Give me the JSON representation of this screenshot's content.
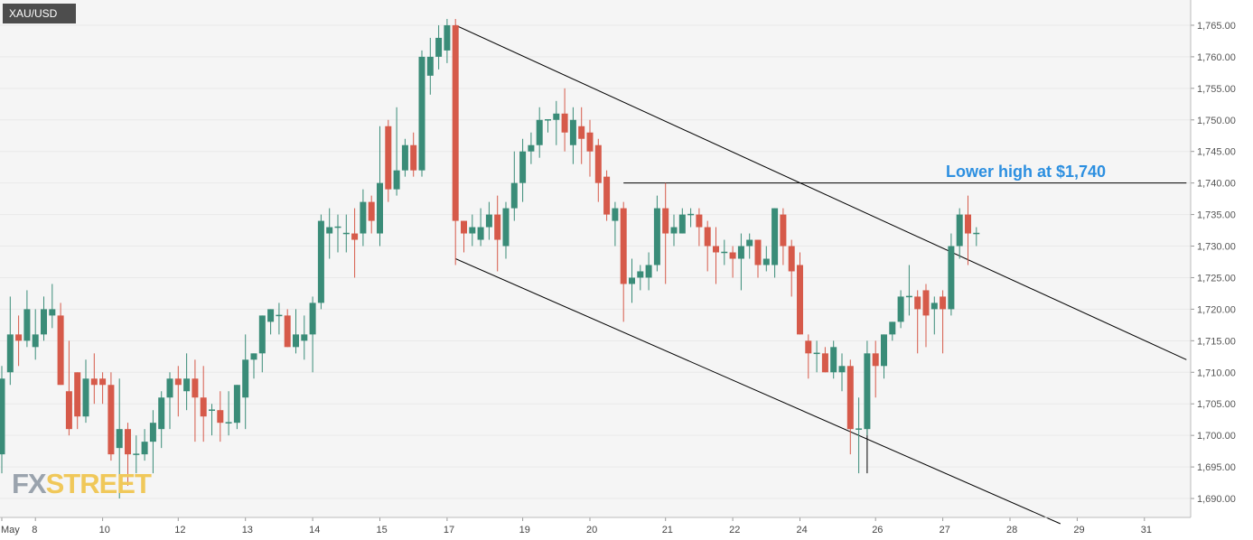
{
  "header": {
    "symbol": "XAU/USD"
  },
  "logo": {
    "part1": "FX",
    "part2": "STREET"
  },
  "colors": {
    "up": "#3a8c78",
    "down": "#d65a4a",
    "grid": "#e9e9e9",
    "background": "#f5f5f5",
    "annotation": "#2c8fe0",
    "trendline": "#000000"
  },
  "chart_data": {
    "type": "candlestick",
    "title": "XAU/USD",
    "xlabel": "",
    "ylabel": "",
    "ylim": [
      1687,
      1769
    ],
    "y_ticks": [
      1690,
      1695,
      1700,
      1705,
      1710,
      1715,
      1720,
      1725,
      1730,
      1735,
      1740,
      1745,
      1750,
      1755,
      1760,
      1765
    ],
    "x_ticks": [
      "May",
      "8",
      "10",
      "12",
      "13",
      "14",
      "15",
      "17",
      "19",
      "20",
      "21",
      "22",
      "24",
      "26",
      "27",
      "28",
      "29",
      "31"
    ],
    "grid": true,
    "candles": [
      [
        1697,
        1709,
        1694,
        1711
      ],
      [
        1710,
        1716,
        1708,
        1722
      ],
      [
        1716,
        1715,
        1711,
        1719
      ],
      [
        1715,
        1720,
        1714,
        1723
      ],
      [
        1714,
        1716,
        1712,
        1720
      ],
      [
        1716,
        1720,
        1715,
        1722
      ],
      [
        1719,
        1720,
        1717,
        1724
      ],
      [
        1719,
        1708,
        1708,
        1721
      ],
      [
        1707,
        1701,
        1700,
        1715
      ],
      [
        1710,
        1703,
        1701,
        1710
      ],
      [
        1703,
        1709,
        1702,
        1712
      ],
      [
        1709,
        1708,
        1705,
        1713
      ],
      [
        1709,
        1708,
        1705,
        1710
      ],
      [
        1708,
        1697,
        1696,
        1710
      ],
      [
        1698,
        1701,
        1690,
        1709
      ],
      [
        1701,
        1697,
        1692,
        1702
      ],
      [
        1697,
        1697,
        1694,
        1700
      ],
      [
        1697,
        1699,
        1696,
        1701
      ],
      [
        1699,
        1702,
        1694,
        1704
      ],
      [
        1701,
        1706,
        1698,
        1707
      ],
      [
        1706,
        1709,
        1701,
        1710
      ],
      [
        1709,
        1708,
        1703,
        1711
      ],
      [
        1707,
        1709,
        1704,
        1713
      ],
      [
        1709,
        1706,
        1699,
        1712
      ],
      [
        1706,
        1703,
        1699,
        1711
      ],
      [
        1704,
        1704,
        1700,
        1705
      ],
      [
        1704,
        1702,
        1699,
        1707
      ],
      [
        1702,
        1702,
        1700,
        1707
      ],
      [
        1702,
        1708,
        1701,
        1708
      ],
      [
        1706,
        1712,
        1701,
        1716
      ],
      [
        1712,
        1713,
        1709,
        1713
      ],
      [
        1713,
        1719,
        1710,
        1719
      ],
      [
        1718,
        1720,
        1716,
        1720
      ],
      [
        1719,
        1719,
        1716,
        1721
      ],
      [
        1719,
        1714,
        1714,
        1720
      ],
      [
        1714,
        1716,
        1713,
        1720
      ],
      [
        1715,
        1716,
        1712,
        1719
      ],
      [
        1716,
        1721,
        1710,
        1722
      ],
      [
        1721,
        1734,
        1720,
        1735
      ],
      [
        1732,
        1733,
        1728,
        1736
      ],
      [
        1733,
        1733,
        1729,
        1735
      ],
      [
        1732,
        1732,
        1729,
        1735
      ],
      [
        1732,
        1731,
        1725,
        1736
      ],
      [
        1732,
        1737,
        1730,
        1739
      ],
      [
        1737,
        1734,
        1732,
        1738
      ],
      [
        1732,
        1740,
        1730,
        1749
      ],
      [
        1749,
        1739,
        1737,
        1750
      ],
      [
        1739,
        1742,
        1738,
        1752
      ],
      [
        1742,
        1746,
        1741,
        1747
      ],
      [
        1746,
        1742,
        1741,
        1748
      ],
      [
        1742,
        1760,
        1741,
        1761
      ],
      [
        1757,
        1760,
        1754,
        1763
      ],
      [
        1760,
        1763,
        1758,
        1765
      ],
      [
        1761,
        1765,
        1759,
        1766
      ],
      [
        1765,
        1734,
        1727,
        1766
      ],
      [
        1734,
        1732,
        1729,
        1734
      ],
      [
        1732,
        1733,
        1730,
        1735
      ],
      [
        1731,
        1733,
        1730,
        1736
      ],
      [
        1733,
        1735,
        1731,
        1737
      ],
      [
        1735,
        1731,
        1726,
        1738
      ],
      [
        1730,
        1736,
        1728,
        1737
      ],
      [
        1736,
        1740,
        1734,
        1745
      ],
      [
        1740,
        1745,
        1737,
        1747
      ],
      [
        1745,
        1746,
        1743,
        1748
      ],
      [
        1746,
        1750,
        1744,
        1752
      ],
      [
        1750,
        1750,
        1748,
        1750
      ],
      [
        1750,
        1751,
        1746,
        1753
      ],
      [
        1751,
        1748,
        1745,
        1755
      ],
      [
        1746,
        1750,
        1743,
        1752
      ],
      [
        1749,
        1747,
        1743,
        1752
      ],
      [
        1748,
        1745,
        1741,
        1750
      ],
      [
        1746,
        1740,
        1737,
        1747
      ],
      [
        1741,
        1735,
        1734,
        1742
      ],
      [
        1734,
        1736,
        1730,
        1737
      ],
      [
        1736,
        1724,
        1718,
        1737
      ],
      [
        1724,
        1725,
        1721,
        1728
      ],
      [
        1725,
        1726,
        1723,
        1727
      ],
      [
        1725,
        1727,
        1723,
        1729
      ],
      [
        1727,
        1736,
        1726,
        1738
      ],
      [
        1736,
        1732,
        1724,
        1740
      ],
      [
        1732,
        1733,
        1730,
        1735
      ],
      [
        1732,
        1735,
        1732,
        1736
      ],
      [
        1735,
        1735,
        1733,
        1736
      ],
      [
        1735,
        1733,
        1730,
        1736
      ],
      [
        1733,
        1730,
        1726,
        1734
      ],
      [
        1730,
        1729,
        1724,
        1733
      ],
      [
        1729,
        1729,
        1727,
        1731
      ],
      [
        1729,
        1728,
        1725,
        1730
      ],
      [
        1728,
        1730,
        1723,
        1732
      ],
      [
        1730,
        1731,
        1728,
        1732
      ],
      [
        1731,
        1727,
        1725,
        1731
      ],
      [
        1727,
        1728,
        1726,
        1730
      ],
      [
        1727,
        1736,
        1725,
        1736
      ],
      [
        1735,
        1730,
        1727,
        1736
      ],
      [
        1730,
        1726,
        1722,
        1731
      ],
      [
        1727,
        1716,
        1716,
        1729
      ],
      [
        1715,
        1713,
        1709,
        1716
      ],
      [
        1713,
        1713,
        1710,
        1715
      ],
      [
        1713,
        1710,
        1710,
        1714
      ],
      [
        1710,
        1714,
        1709,
        1715
      ],
      [
        1710,
        1711,
        1707,
        1713
      ],
      [
        1711,
        1701,
        1697,
        1712
      ],
      [
        1701,
        1701,
        1694,
        1706
      ],
      [
        1701,
        1713,
        1700,
        1715
      ],
      [
        1713,
        1711,
        1706,
        1715
      ],
      [
        1711,
        1716,
        1709,
        1716
      ],
      [
        1716,
        1718,
        1715,
        1718
      ],
      [
        1718,
        1722,
        1717,
        1723
      ],
      [
        1722,
        1722,
        1719,
        1727
      ],
      [
        1722,
        1720,
        1713,
        1723
      ],
      [
        1723,
        1719,
        1714,
        1724
      ],
      [
        1720,
        1721,
        1716,
        1722
      ],
      [
        1722,
        1720,
        1713,
        1723
      ],
      [
        1720,
        1730,
        1719,
        1732
      ],
      [
        1730,
        1735,
        1728,
        1736
      ],
      [
        1735,
        1732,
        1727,
        1738
      ],
      [
        1732,
        1732,
        1730,
        1733
      ]
    ],
    "trendlines": [
      {
        "from": [
          54,
          1765
        ],
        "to": [
          141,
          1712
        ]
      },
      {
        "from": [
          54,
          1728
        ],
        "to": [
          126,
          1686
        ]
      },
      {
        "from": [
          74,
          1740
        ],
        "to": [
          141,
          1740
        ]
      },
      {
        "from": [
          103,
          1704
        ],
        "to": [
          103,
          1694
        ]
      }
    ],
    "annotations": [
      {
        "text": "Lower high at $1,740",
        "value": 1740
      }
    ]
  }
}
